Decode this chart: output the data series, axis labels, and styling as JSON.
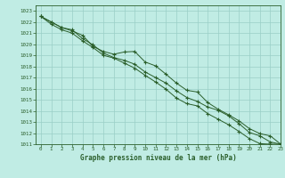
{
  "title": "Graphe pression niveau de la mer (hPa)",
  "bg_color": "#c0ece4",
  "grid_color": "#9acfc7",
  "line_color": "#2a5e2a",
  "xlim": [
    -0.5,
    23
  ],
  "ylim": [
    1011,
    1023.5
  ],
  "xticks": [
    0,
    1,
    2,
    3,
    4,
    5,
    6,
    7,
    8,
    9,
    10,
    11,
    12,
    13,
    14,
    15,
    16,
    17,
    18,
    19,
    20,
    21,
    22,
    23
  ],
  "yticks": [
    1011,
    1012,
    1013,
    1014,
    1015,
    1016,
    1017,
    1018,
    1019,
    1020,
    1021,
    1022,
    1023
  ],
  "line1_x": [
    0,
    1,
    2,
    3,
    4,
    5,
    6,
    7,
    8,
    9,
    10,
    11,
    12,
    13,
    14,
    15,
    16,
    17,
    18,
    19,
    20,
    21,
    22,
    23
  ],
  "line1_y": [
    1022.5,
    1022.0,
    1021.5,
    1021.2,
    1020.8,
    1019.8,
    1019.35,
    1019.1,
    1019.3,
    1019.35,
    1018.4,
    1018.05,
    1017.3,
    1016.5,
    1015.85,
    1015.7,
    1014.75,
    1014.15,
    1013.65,
    1013.1,
    1012.4,
    1011.95,
    1011.75,
    1011.0
  ],
  "line2_x": [
    0,
    1,
    2,
    3,
    4,
    5,
    6,
    7,
    8,
    9,
    10,
    11,
    12,
    13,
    14,
    15,
    16,
    17,
    18,
    19,
    20,
    21,
    22,
    23
  ],
  "line2_y": [
    1022.5,
    1022.0,
    1021.5,
    1021.3,
    1020.5,
    1019.95,
    1019.2,
    1018.8,
    1018.55,
    1018.2,
    1017.5,
    1017.0,
    1016.5,
    1015.8,
    1015.2,
    1014.85,
    1014.35,
    1014.05,
    1013.55,
    1012.85,
    1012.05,
    1011.75,
    1011.2,
    1011.0
  ],
  "line3_x": [
    0,
    1,
    2,
    3,
    4,
    5,
    6,
    7,
    8,
    9,
    10,
    11,
    12,
    13,
    14,
    15,
    16,
    17,
    18,
    19,
    20,
    21,
    22,
    23
  ],
  "line3_y": [
    1022.5,
    1021.8,
    1021.3,
    1021.0,
    1020.3,
    1019.7,
    1019.0,
    1018.75,
    1018.3,
    1017.85,
    1017.2,
    1016.6,
    1015.95,
    1015.15,
    1014.65,
    1014.45,
    1013.75,
    1013.25,
    1012.75,
    1012.15,
    1011.5,
    1011.05,
    1011.0,
    1011.0
  ]
}
